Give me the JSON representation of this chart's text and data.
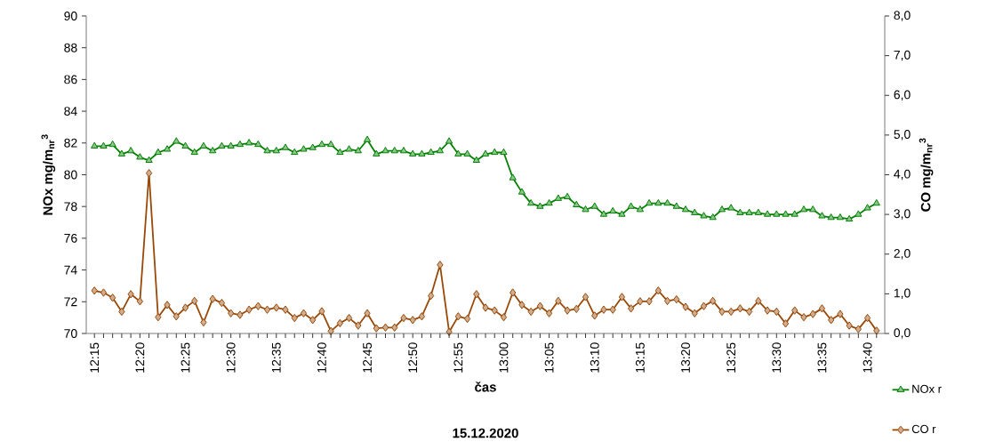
{
  "chart_data": {
    "type": "line",
    "xlabel": "čas",
    "ylabel": "NOx  mg/m$_{nr}$$^{3}$",
    "y2label": "CO  mg/m$_{nr}$$^{3}$",
    "annotations": [
      "15.12.2020"
    ],
    "categories": [
      "12:15",
      null,
      null,
      null,
      null,
      "12:20",
      null,
      null,
      null,
      null,
      "12:25",
      null,
      null,
      null,
      null,
      "12:30",
      null,
      null,
      null,
      null,
      "12:35",
      null,
      null,
      null,
      null,
      "12:40",
      null,
      null,
      null,
      null,
      "12:45",
      null,
      null,
      null,
      null,
      "12:50",
      null,
      null,
      null,
      null,
      "12:55",
      null,
      null,
      null,
      null,
      "13:00",
      null,
      null,
      null,
      null,
      "13:05",
      null,
      null,
      null,
      null,
      "13:10",
      null,
      null,
      null,
      null,
      "13:15",
      null,
      null,
      null,
      null,
      "13:20",
      null,
      null,
      null,
      null,
      "13:25",
      null,
      null,
      null,
      null,
      "13:30",
      null,
      null,
      null,
      null,
      "13:35",
      null,
      null,
      null,
      null,
      "13:40",
      null
    ],
    "series": [
      {
        "name": "NOx r",
        "color": "#008000",
        "marker": "triangle",
        "values": [
          81.8,
          81.8,
          81.9,
          81.3,
          81.5,
          81.1,
          80.9,
          81.4,
          81.6,
          82.1,
          81.8,
          81.4,
          81.8,
          81.5,
          81.8,
          81.8,
          81.9,
          82.0,
          81.9,
          81.5,
          81.5,
          81.7,
          81.4,
          81.6,
          81.7,
          81.9,
          81.9,
          81.4,
          81.6,
          81.5,
          82.2,
          81.3,
          81.5,
          81.5,
          81.5,
          81.3,
          81.3,
          81.4,
          81.5,
          82.1,
          81.3,
          81.3,
          80.9,
          81.3,
          81.4,
          81.4,
          79.8,
          78.9,
          78.2,
          78.0,
          78.2,
          78.5,
          78.6,
          78.1,
          77.8,
          78.0,
          77.5,
          77.7,
          77.5,
          78.0,
          77.8,
          78.2,
          78.2,
          78.2,
          78.0,
          77.8,
          77.6,
          77.4,
          77.3,
          77.8,
          77.9,
          77.6,
          77.6,
          77.6,
          77.5,
          77.5,
          77.5,
          77.5,
          77.8,
          77.8,
          77.4,
          77.3,
          77.3,
          77.2,
          77.5,
          77.9,
          78.2
        ]
      },
      {
        "name": "CO r",
        "color": "#984807",
        "marker": "diamond",
        "axis": "y2",
        "values": [
          1.08,
          1.03,
          0.9,
          0.55,
          0.99,
          0.81,
          4.04,
          0.41,
          0.72,
          0.43,
          0.65,
          0.82,
          0.28,
          0.87,
          0.77,
          0.51,
          0.47,
          0.6,
          0.69,
          0.6,
          0.65,
          0.6,
          0.39,
          0.51,
          0.34,
          0.56,
          0.06,
          0.26,
          0.39,
          0.2,
          0.51,
          0.13,
          0.15,
          0.15,
          0.39,
          0.34,
          0.43,
          0.95,
          1.73,
          0.04,
          0.43,
          0.37,
          0.99,
          0.65,
          0.58,
          0.41,
          1.03,
          0.72,
          0.55,
          0.69,
          0.51,
          0.82,
          0.58,
          0.62,
          0.92,
          0.45,
          0.6,
          0.6,
          0.92,
          0.63,
          0.81,
          0.81,
          1.08,
          0.82,
          0.86,
          0.67,
          0.51,
          0.69,
          0.82,
          0.55,
          0.55,
          0.63,
          0.55,
          0.82,
          0.58,
          0.55,
          0.25,
          0.58,
          0.41,
          0.49,
          0.63,
          0.34,
          0.49,
          0.2,
          0.11,
          0.39,
          0.07
        ]
      }
    ],
    "ylim": [
      70,
      90
    ],
    "yticks": [
      70,
      72,
      74,
      76,
      78,
      80,
      82,
      84,
      86,
      88,
      90
    ],
    "y2lim": [
      0,
      8
    ],
    "y2ticks": [
      {
        "value": 0,
        "label": "0,0"
      },
      {
        "value": 1,
        "label": "1,0"
      },
      {
        "value": 2,
        "label": "2,0"
      },
      {
        "value": 3,
        "label": "3,0"
      },
      {
        "value": 4,
        "label": "4,0"
      },
      {
        "value": 5,
        "label": "5,0"
      },
      {
        "value": 6,
        "label": "6,0"
      },
      {
        "value": 7,
        "label": "7,0"
      },
      {
        "value": 8,
        "label": "8,0"
      }
    ],
    "grid": false,
    "legend": "bottom right",
    "line_style": "solid"
  }
}
